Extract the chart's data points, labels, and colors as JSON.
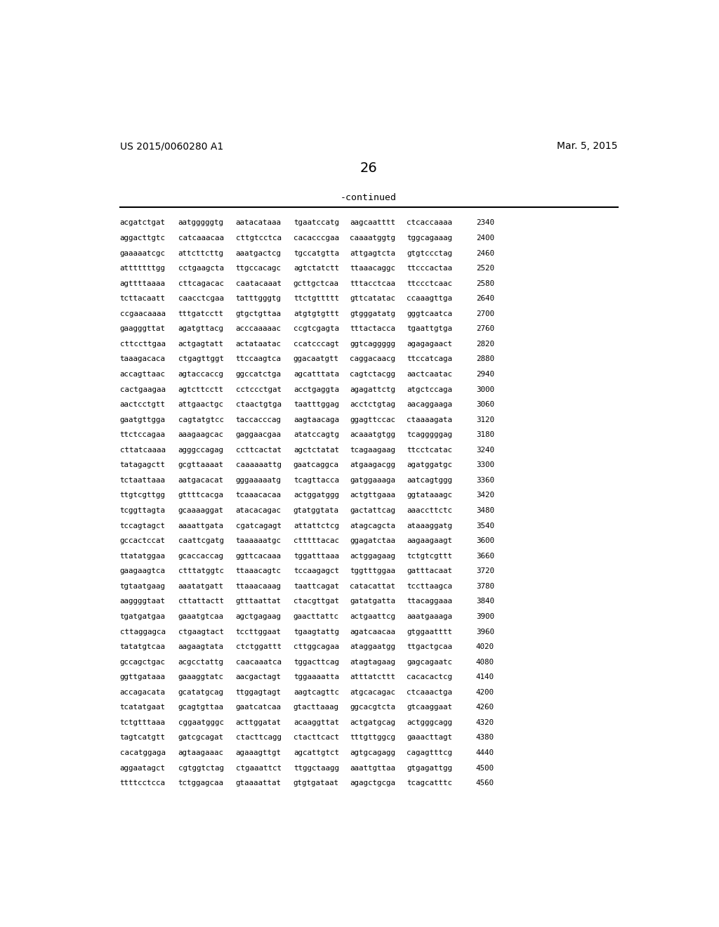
{
  "patent_number": "US 2015/0060280 A1",
  "date": "Mar. 5, 2015",
  "page_number": "26",
  "continued_label": "-continued",
  "sequence_lines": [
    [
      "acgatctgat",
      "aatgggggtg",
      "aatacataaa",
      "tgaatccatg",
      "aagcaatttt",
      "ctcaccaaaa",
      "2340"
    ],
    [
      "aggacttgtc",
      "catcaaacaa",
      "cttgtcctca",
      "cacacccgaa",
      "caaaatggtg",
      "tggcagaaag",
      "2400"
    ],
    [
      "gaaaaatcgc",
      "attcttcttg",
      "aaatgactcg",
      "tgccatgtta",
      "attgagtcta",
      "gtgtccctag",
      "2460"
    ],
    [
      "atttttttgg",
      "cctgaagcta",
      "ttgccacagc",
      "agtctatctt",
      "ttaaacaggc",
      "ttcccactaa",
      "2520"
    ],
    [
      "agttttaaaa",
      "cttcagacac",
      "caatacaaat",
      "gcttgctcaa",
      "tttacctcaa",
      "ttccctcaac",
      "2580"
    ],
    [
      "tcttacaatt",
      "caacctcgaa",
      "tatttgggtg",
      "ttctgttttt",
      "gttcatatac",
      "ccaaagttga",
      "2640"
    ],
    [
      "ccgaacaaaa",
      "tttgatcctt",
      "gtgctgttaa",
      "atgtgtgttt",
      "gtgggatatg",
      "gggtcaatca",
      "2700"
    ],
    [
      "gaagggttat",
      "agatgttacg",
      "acccaaaaac",
      "ccgtcgagta",
      "tttactacca",
      "tgaattgtga",
      "2760"
    ],
    [
      "cttccttgaa",
      "actgagtatt",
      "actataatac",
      "ccatcccagt",
      "ggtcaggggg",
      "agagagaact",
      "2820"
    ],
    [
      "taaagacaca",
      "ctgagttggt",
      "ttccaagtca",
      "ggacaatgtt",
      "caggacaacg",
      "ttccatcaga",
      "2880"
    ],
    [
      "accagttaac",
      "agtaccaccg",
      "ggccatctga",
      "agcatttata",
      "cagtctacgg",
      "aactcaatac",
      "2940"
    ],
    [
      "cactgaagaa",
      "agtcttcctt",
      "cctccctgat",
      "acctgaggta",
      "agagattctg",
      "atgctccaga",
      "3000"
    ],
    [
      "aactcctgtt",
      "attgaactgc",
      "ctaactgtga",
      "taatttggag",
      "acctctgtag",
      "aacaggaaga",
      "3060"
    ],
    [
      "gaatgttgga",
      "cagtatgtcc",
      "taccacccag",
      "aagtaacaga",
      "ggagttccac",
      "ctaaaagata",
      "3120"
    ],
    [
      "ttctccagaa",
      "aaagaagcac",
      "gaggaacgaa",
      "atatccagtg",
      "acaaatgtgg",
      "tcagggggag",
      "3180"
    ],
    [
      "cttatcaaaa",
      "agggccagag",
      "ccttcactat",
      "agctctatat",
      "tcagaagaag",
      "ttcctcatac",
      "3240"
    ],
    [
      "tatagagctt",
      "gcgttaaaat",
      "caaaaaattg",
      "gaatcaggca",
      "atgaagacgg",
      "agatggatgc",
      "3300"
    ],
    [
      "tctaattaaa",
      "aatgacacat",
      "gggaaaaatg",
      "tcagttacca",
      "gatggaaaga",
      "aatcagtggg",
      "3360"
    ],
    [
      "ttgtcgttgg",
      "gttttcacga",
      "tcaaacacaa",
      "actggatggg",
      "actgttgaaa",
      "ggtataaagc",
      "3420"
    ],
    [
      "tcggttagta",
      "gcaaaaggat",
      "atacacagac",
      "gtatggtata",
      "gactattcag",
      "aaaccttctc",
      "3480"
    ],
    [
      "tccagtagct",
      "aaaattgata",
      "cgatcagagt",
      "attattctcg",
      "atagcagcta",
      "ataaaggatg",
      "3540"
    ],
    [
      "gccactccat",
      "caattcgatg",
      "taaaaaatgc",
      "ctttttacac",
      "ggagatctaa",
      "aagaagaagt",
      "3600"
    ],
    [
      "ttatatggaa",
      "gcaccaccag",
      "ggttcacaaa",
      "tggatttaaa",
      "actggagaag",
      "tctgtcgttt",
      "3660"
    ],
    [
      "gaagaagtca",
      "ctttatggtc",
      "ttaaacagtc",
      "tccaagagct",
      "tggtttggaa",
      "gatttacaat",
      "3720"
    ],
    [
      "tgtaatgaag",
      "aaatatgatt",
      "ttaaacaaag",
      "taattcagat",
      "catacattat",
      "tccttaagca",
      "3780"
    ],
    [
      "aaggggtaat",
      "cttattactt",
      "gtttaattat",
      "ctacgttgat",
      "gatatgatta",
      "ttacaggaaa",
      "3840"
    ],
    [
      "tgatgatgaa",
      "gaaatgtcaa",
      "agctgagaag",
      "gaacttattc",
      "actgaattcg",
      "aaatgaaaga",
      "3900"
    ],
    [
      "cttaggagca",
      "ctgaagtact",
      "tccttggaat",
      "tgaagtattg",
      "agatcaacaa",
      "gtggaatttt",
      "3960"
    ],
    [
      "tatatgtcaa",
      "aagaagtata",
      "ctctggattt",
      "cttggcagaa",
      "ataggaatgg",
      "ttgactgcaa",
      "4020"
    ],
    [
      "gccagctgac",
      "acgcctattg",
      "caacaaatca",
      "tggacttcag",
      "atagtagaag",
      "gagcagaatc",
      "4080"
    ],
    [
      "ggttgataaa",
      "gaaaggtatc",
      "aacgactagt",
      "tggaaaatta",
      "atttatcttt",
      "cacacactcg",
      "4140"
    ],
    [
      "accagacata",
      "gcatatgcag",
      "ttggagtagt",
      "aagtcagttc",
      "atgcacagac",
      "ctcaaactga",
      "4200"
    ],
    [
      "tcatatgaat",
      "gcagtgttaa",
      "gaatcatcaa",
      "gtacttaaag",
      "ggcacgtcta",
      "gtcaaggaat",
      "4260"
    ],
    [
      "tctgtttaaa",
      "cggaatgggc",
      "acttggatat",
      "acaaggttat",
      "actgatgcag",
      "actgggcagg",
      "4320"
    ],
    [
      "tagtcatgtt",
      "gatcgcagat",
      "ctacttcagg",
      "ctacttcact",
      "tttgttggcg",
      "gaaacttagt",
      "4380"
    ],
    [
      "cacatggaga",
      "agtaagaaac",
      "agaaagttgt",
      "agcattgtct",
      "agtgcagagg",
      "cagagtttcg",
      "4440"
    ],
    [
      "aggaatagct",
      "cgtggtctag",
      "ctgaaattct",
      "ttggctaagg",
      "aaattgttaa",
      "gtgagattgg",
      "4500"
    ],
    [
      "ttttcctcca",
      "tctggagcaa",
      "gtaaaattat",
      "gtgtgataat",
      "agagctgcga",
      "tcagcatttc",
      "4560"
    ]
  ],
  "bg_color": "#ffffff",
  "text_color": "#000000"
}
